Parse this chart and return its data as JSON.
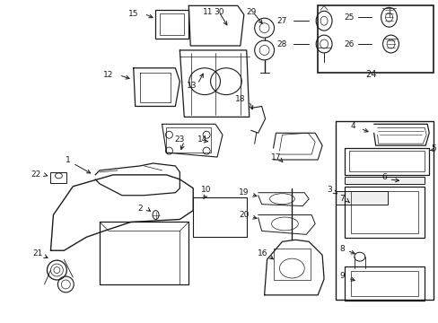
{
  "bg": "#ffffff",
  "lc": "#1a1a1a",
  "fig_w": 4.89,
  "fig_h": 3.6,
  "dpi": 100,
  "xlim": [
    0,
    489
  ],
  "ylim": [
    0,
    360
  ]
}
